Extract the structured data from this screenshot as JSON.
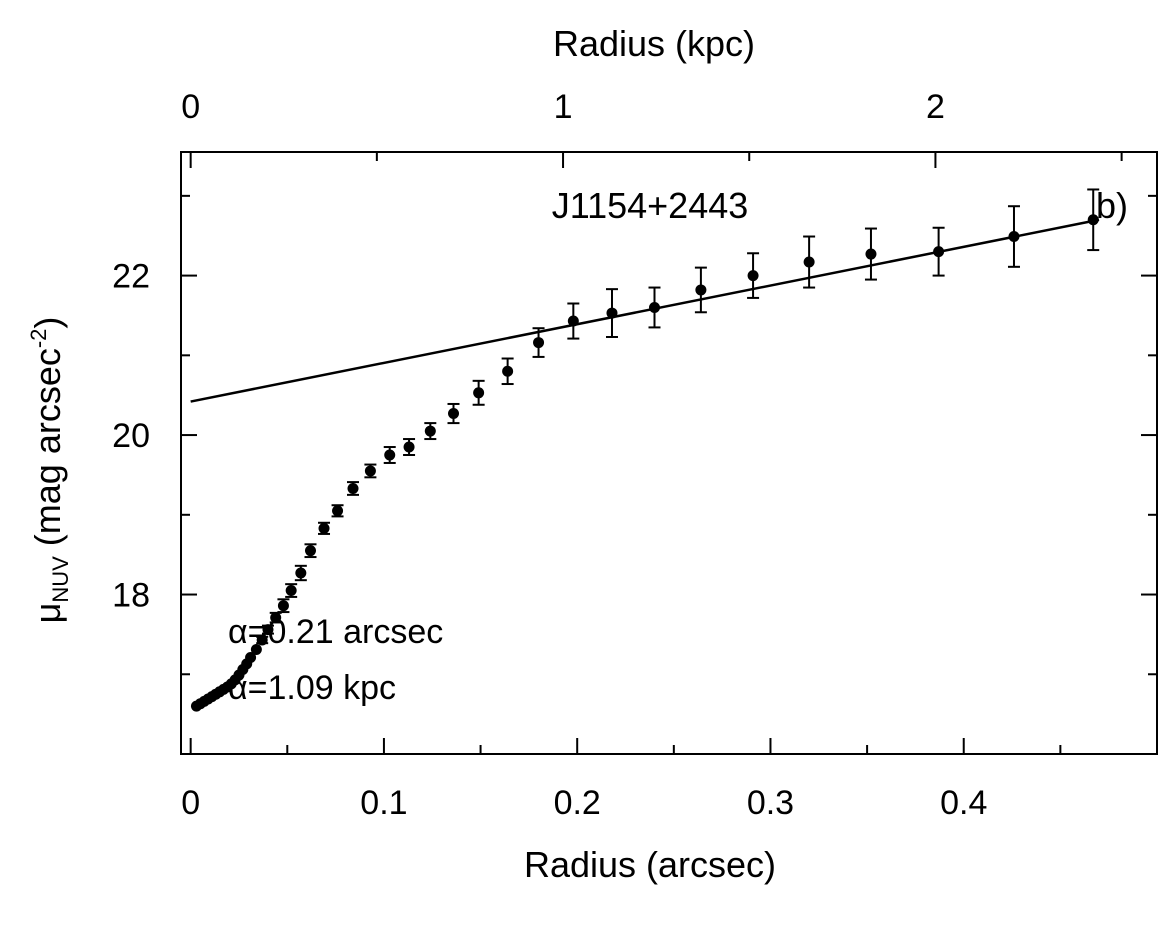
{
  "chart_data": {
    "type": "scatter",
    "title": "J1154+2443",
    "panel_label": "b)",
    "xlabel": "Radius (arcsec)",
    "x2label": "Radius (kpc)",
    "ylabel_parts": {
      "mu": "μ",
      "sub": "NUV",
      "rest": " (mag arcsec",
      "sup": "-2",
      "close": ")"
    },
    "xlim": [
      -0.005,
      0.5
    ],
    "ylim": [
      23.55,
      16.0
    ],
    "y_inverted": true,
    "x_ticks_major": [
      0,
      0.1,
      0.2,
      0.3,
      0.4
    ],
    "x_tick_labels": [
      "0",
      "0.1",
      "0.2",
      "0.3",
      "0.4"
    ],
    "x_ticks_minor": [
      0.05,
      0.15,
      0.25,
      0.35,
      0.45
    ],
    "y_ticks_major": [
      18,
      20,
      22
    ],
    "y_tick_labels": [
      "18",
      "20",
      "22"
    ],
    "y_ticks_minor": [
      17,
      19,
      21,
      23
    ],
    "top_ticks_major": [
      0,
      1,
      2
    ],
    "top_tick_labels": [
      "0",
      "1",
      "2"
    ],
    "kpc_per_arcsec": 5.19,
    "annotations": [
      "α=0.21 arcsec",
      "α=1.09 kpc"
    ],
    "fit_line": {
      "x": [
        0,
        0.47
      ],
      "y": [
        20.42,
        22.7
      ]
    },
    "series": [
      {
        "x": [
          0.003,
          0.005,
          0.007,
          0.009,
          0.011,
          0.013,
          0.015,
          0.017,
          0.019,
          0.021,
          0.023,
          0.025,
          0.027,
          0.029,
          0.031,
          0.034,
          0.037,
          0.04,
          0.044,
          0.048,
          0.052,
          0.057,
          0.062,
          0.069,
          0.076,
          0.084,
          0.093,
          0.103,
          0.113,
          0.124,
          0.136,
          0.149,
          0.164,
          0.18,
          0.198,
          0.218,
          0.24,
          0.264,
          0.291,
          0.32,
          0.352,
          0.387,
          0.426,
          0.467
        ],
        "y": [
          16.6,
          16.63,
          16.66,
          16.69,
          16.72,
          16.75,
          16.78,
          16.81,
          16.84,
          16.88,
          16.93,
          16.99,
          17.06,
          17.13,
          17.21,
          17.31,
          17.43,
          17.56,
          17.71,
          17.86,
          18.05,
          18.27,
          18.55,
          18.83,
          19.05,
          19.33,
          19.55,
          19.75,
          19.85,
          20.05,
          20.27,
          20.53,
          20.8,
          21.16,
          21.43,
          21.53,
          21.6,
          21.82,
          22.0,
          22.17,
          22.27,
          22.3,
          22.49,
          22.7
        ],
        "err": [
          0.02,
          0.02,
          0.02,
          0.02,
          0.02,
          0.02,
          0.02,
          0.02,
          0.02,
          0.02,
          0.02,
          0.02,
          0.03,
          0.03,
          0.03,
          0.03,
          0.04,
          0.05,
          0.06,
          0.08,
          0.08,
          0.09,
          0.08,
          0.07,
          0.07,
          0.08,
          0.08,
          0.1,
          0.1,
          0.1,
          0.12,
          0.15,
          0.16,
          0.18,
          0.22,
          0.3,
          0.25,
          0.28,
          0.28,
          0.32,
          0.32,
          0.3,
          0.38,
          0.38
        ]
      }
    ]
  }
}
